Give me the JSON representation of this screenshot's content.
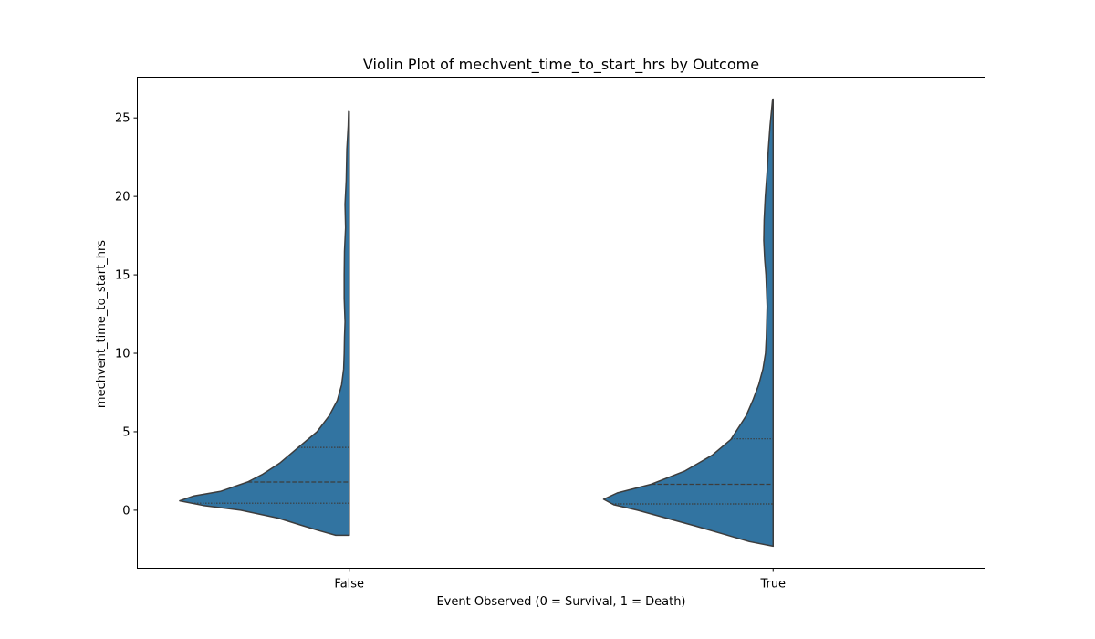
{
  "chart_data": {
    "type": "violin",
    "title": "Violin Plot of mechvent_time_to_start_hrs by Outcome",
    "xlabel": "Event Observed (0 = Survival, 1 = Death)",
    "ylabel": "mechvent_time_to_start_hrs",
    "categories": [
      "False",
      "True"
    ],
    "ylim": [
      -3.7,
      27.6
    ],
    "yticks": [
      0,
      5,
      10,
      15,
      20,
      25
    ],
    "split": "left-half",
    "violin_color": "#3274a1",
    "edge_color": "#3d3d3d",
    "grid": false,
    "violins": [
      {
        "category": "False",
        "quartiles": [
          0.45,
          1.8,
          4.0
        ],
        "min": -1.6,
        "max": 25.4,
        "density": [
          [
            -1.6,
            0.08
          ],
          [
            -1.3,
            0.18
          ],
          [
            -1.0,
            0.27
          ],
          [
            -0.5,
            0.42
          ],
          [
            0.0,
            0.64
          ],
          [
            0.3,
            0.86
          ],
          [
            0.6,
            1.0
          ],
          [
            0.9,
            0.92
          ],
          [
            1.2,
            0.76
          ],
          [
            1.8,
            0.6
          ],
          [
            2.3,
            0.51
          ],
          [
            3.0,
            0.41
          ],
          [
            4.0,
            0.3
          ],
          [
            5.0,
            0.19
          ],
          [
            6.0,
            0.12
          ],
          [
            7.0,
            0.07
          ],
          [
            8.0,
            0.045
          ],
          [
            9.0,
            0.033
          ],
          [
            10.0,
            0.03
          ],
          [
            11.0,
            0.028
          ],
          [
            12.0,
            0.025
          ],
          [
            13.5,
            0.03
          ],
          [
            15.0,
            0.03
          ],
          [
            16.5,
            0.028
          ],
          [
            18.0,
            0.022
          ],
          [
            19.5,
            0.025
          ],
          [
            21.0,
            0.018
          ],
          [
            23.0,
            0.014
          ],
          [
            24.5,
            0.006
          ],
          [
            25.4,
            0.004
          ]
        ]
      },
      {
        "category": "True",
        "quartiles": [
          0.4,
          1.65,
          4.55
        ],
        "min": -2.3,
        "max": 26.2,
        "density": [
          [
            -2.3,
            0.0
          ],
          [
            -2.0,
            0.14
          ],
          [
            -1.5,
            0.3
          ],
          [
            -1.0,
            0.46
          ],
          [
            -0.5,
            0.63
          ],
          [
            0.0,
            0.8
          ],
          [
            0.35,
            0.94
          ],
          [
            0.7,
            1.0
          ],
          [
            1.1,
            0.92
          ],
          [
            1.65,
            0.72
          ],
          [
            2.5,
            0.52
          ],
          [
            3.5,
            0.36
          ],
          [
            4.5,
            0.25
          ],
          [
            6.0,
            0.16
          ],
          [
            7.0,
            0.12
          ],
          [
            8.0,
            0.085
          ],
          [
            9.0,
            0.06
          ],
          [
            10.0,
            0.045
          ],
          [
            11.0,
            0.04
          ],
          [
            13.0,
            0.035
          ],
          [
            15.0,
            0.042
          ],
          [
            16.0,
            0.05
          ],
          [
            17.2,
            0.055
          ],
          [
            18.5,
            0.053
          ],
          [
            20.0,
            0.046
          ],
          [
            21.5,
            0.036
          ],
          [
            23.0,
            0.028
          ],
          [
            24.5,
            0.018
          ],
          [
            26.2,
            0.003
          ]
        ]
      }
    ]
  }
}
